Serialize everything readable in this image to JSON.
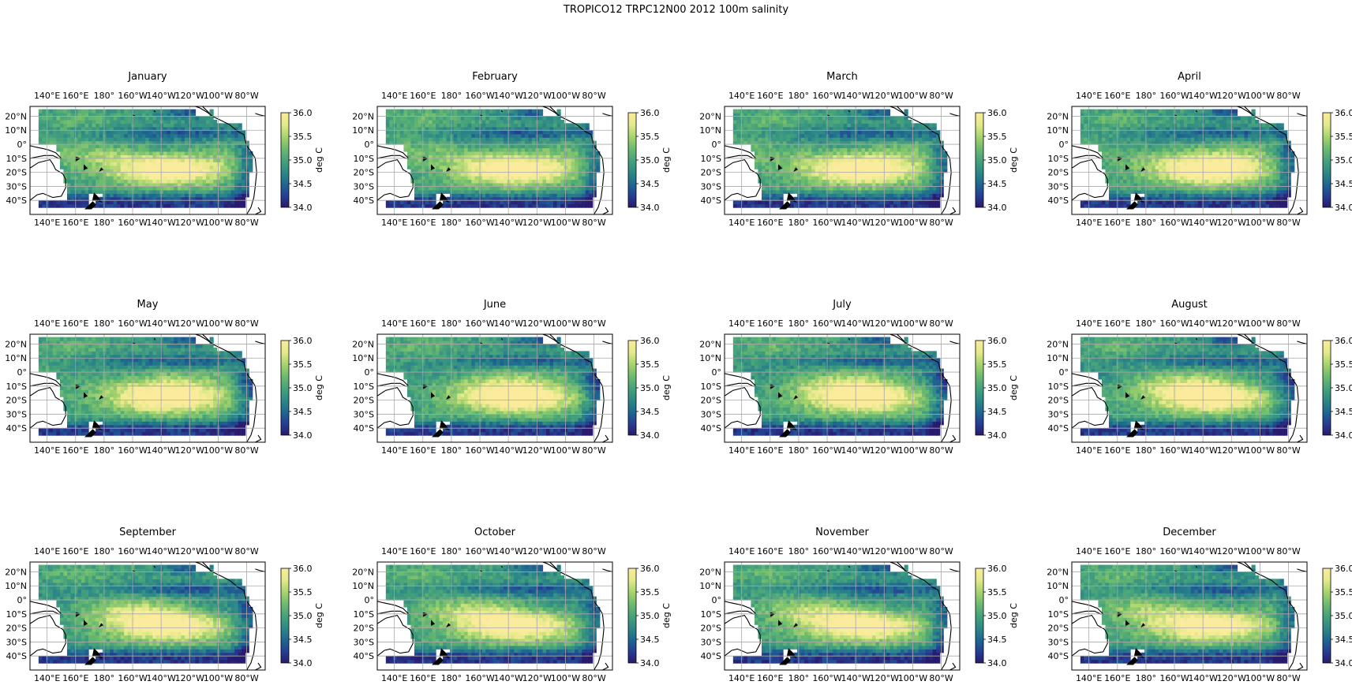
{
  "figure": {
    "title": "TROPICO12 TRPC12N00 2012 100m salinity"
  },
  "chart_data": {
    "type": "heatmap",
    "panels": [
      {
        "title": "January"
      },
      {
        "title": "February"
      },
      {
        "title": "March"
      },
      {
        "title": "April"
      },
      {
        "title": "May"
      },
      {
        "title": "June"
      },
      {
        "title": "July"
      },
      {
        "title": "August"
      },
      {
        "title": "September"
      },
      {
        "title": "October"
      },
      {
        "title": "November"
      },
      {
        "title": "December"
      }
    ],
    "x_tick_labels": [
      "140°E",
      "160°E",
      "180°",
      "160°W",
      "140°W",
      "120°W",
      "100°W",
      "80°W"
    ],
    "x_tick_values": [
      140,
      160,
      180,
      200,
      220,
      240,
      260,
      280
    ],
    "y_tick_labels": [
      "20°N",
      "10°N",
      "0°",
      "10°S",
      "20°S",
      "30°S",
      "40°S"
    ],
    "y_tick_values": [
      20,
      10,
      0,
      -10,
      -20,
      -30,
      -40
    ],
    "xlim": [
      128,
      293
    ],
    "ylim": [
      -50,
      27
    ],
    "data_extent": {
      "lon": [
        134,
        285
      ],
      "lat": [
        -45,
        25
      ]
    },
    "grid": true,
    "colorbar": {
      "label": "deg C",
      "range": [
        34.0,
        36.0
      ],
      "ticks": [
        "34.0",
        "34.5",
        "35.0",
        "35.5",
        "36.0"
      ],
      "tick_values": [
        34.0,
        34.5,
        35.0,
        35.5,
        36.0
      ],
      "colormap": "haline",
      "colors": [
        "#2a1a6e",
        "#253f94",
        "#1e6a8f",
        "#2f8a86",
        "#47a37b",
        "#6fbc6e",
        "#a8d46f",
        "#e4ea8a",
        "#fbeb9c"
      ]
    },
    "land_color": "#ffffff",
    "coast_color": "#000000"
  }
}
